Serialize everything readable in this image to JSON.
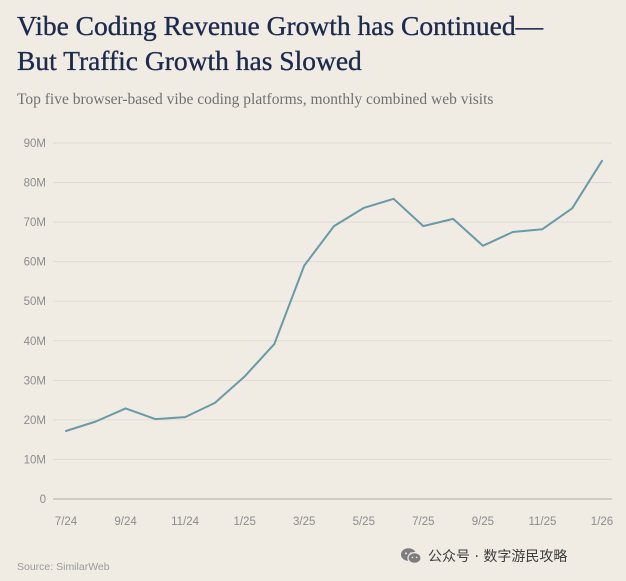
{
  "chart_data": {
    "type": "line",
    "title_line1": "Vibe Coding Revenue Growth has Continued—",
    "title_line2": "But Traffic Growth has Slowed",
    "subtitle": "Top five browser-based vibe coding platforms, monthly combined web visits",
    "x_tick_labels": [
      "7/24",
      "9/24",
      "11/24",
      "1/25",
      "3/25",
      "5/25",
      "7/25",
      "9/25",
      "11/25",
      "1/26"
    ],
    "y_tick_labels": [
      "0",
      "10M",
      "20M",
      "30M",
      "40M",
      "50M",
      "60M",
      "70M",
      "80M",
      "90M"
    ],
    "ylim": [
      0,
      90
    ],
    "xlabel": "",
    "ylabel": "",
    "grid": true,
    "series": [
      {
        "name": "Monthly combined web visits (M)",
        "color": "#6a9aa6",
        "x": [
          "7/24",
          "8/24",
          "9/24",
          "10/24",
          "11/24",
          "12/24",
          "1/25",
          "2/25",
          "3/25",
          "4/25",
          "5/25",
          "6/25",
          "7/25",
          "8/25",
          "9/25",
          "10/25",
          "11/25",
          "12/25",
          "1/26"
        ],
        "values": [
          17.2,
          19.6,
          22.9,
          20.2,
          20.7,
          24.3,
          31.0,
          39.2,
          59.0,
          69.0,
          73.6,
          75.9,
          69.0,
          70.8,
          64.0,
          67.5,
          68.2,
          73.5,
          85.5
        ]
      }
    ]
  },
  "source": "Source: SimilarWeb",
  "watermark": {
    "icon": "wechat-icon",
    "text": "公众号 · 数字游民攻略"
  }
}
